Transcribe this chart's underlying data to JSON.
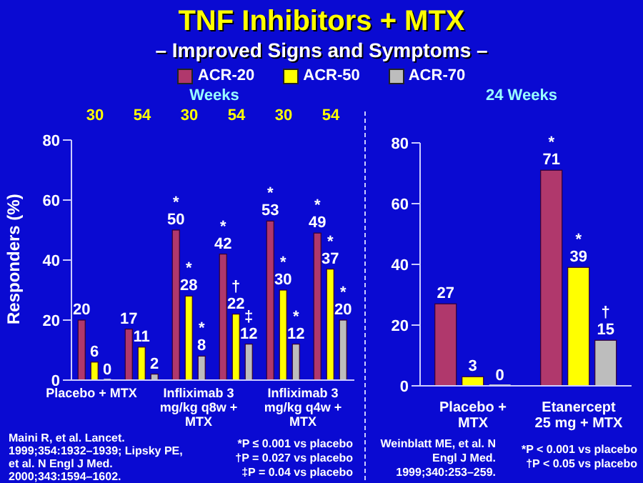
{
  "chart_data": [
    {
      "type": "bar",
      "title": "TNF Inhibitors + MTX",
      "subtitle": "– Improved Signs and Symptoms –",
      "xlabel": "Weeks",
      "ylabel": "Responders (%)",
      "categories": [
        "30",
        "54",
        "30",
        "54",
        "30",
        "54"
      ],
      "series": [
        {
          "name": "ACR-20",
          "color": "#b0386c",
          "values": [
            20,
            17,
            50,
            42,
            53,
            49
          ],
          "value_labels": [
            "20",
            "17",
            "*\n50",
            "*\n42",
            "*\n53",
            "*\n49"
          ]
        },
        {
          "name": "ACR-50",
          "color": "#ffff00",
          "values": [
            6,
            11,
            28,
            22,
            30,
            37
          ],
          "value_labels": [
            "6",
            "11",
            "*\n28",
            "†\n22",
            "*\n30",
            "*\n37"
          ]
        },
        {
          "name": "ACR-70",
          "color": "#bdbdbd",
          "values": [
            0,
            2,
            8,
            12,
            12,
            20
          ],
          "value_labels": [
            "0",
            "2",
            "*\n8",
            "‡\n12",
            "*\n12",
            "*\n20"
          ]
        }
      ],
      "ylim": [
        0,
        80
      ],
      "yticks": [
        0,
        20,
        40,
        60,
        80
      ],
      "grid": false,
      "legend": "top",
      "annotations": [
        "Placebo + MTX",
        "Infliximab 3 mg/kg q8w + MTX",
        "Infliximab 3 mg/kg q4w + MTX",
        "Maini R, et al. Lancet. 1999;354:1932–1939; Lipsky PE, et al. N Engl J Med. 2000;343:1594–1602.",
        "*P ≤ 0.001 vs placebo",
        "†P = 0.027 vs placebo",
        "‡P = 0.04 vs placebo"
      ]
    },
    {
      "type": "bar",
      "xlabel": "24 Weeks",
      "categories": [
        "Placebo + MTX",
        "Etanercept 25 mg + MTX"
      ],
      "series": [
        {
          "color": "#b0386c",
          "values": [
            27,
            71
          ],
          "value_labels": [
            "27",
            "*\n71"
          ]
        },
        {
          "color": "#ffff00",
          "values": [
            3,
            39
          ],
          "value_labels": [
            "3",
            "*\n39"
          ]
        },
        {
          "color": "#bdbdbd",
          "values": [
            0,
            15
          ],
          "value_labels": [
            "0",
            "†\n15"
          ]
        }
      ],
      "ylim": [
        0,
        80
      ],
      "yticks": [
        0,
        20,
        40,
        60,
        80
      ],
      "grid": false,
      "annotations": [
        "Weinblatt ME, et al. N Engl J Med. 1999;340:253–259.",
        "*P < 0.001 vs placebo",
        "†P < 0.05 vs placebo"
      ]
    }
  ]
}
